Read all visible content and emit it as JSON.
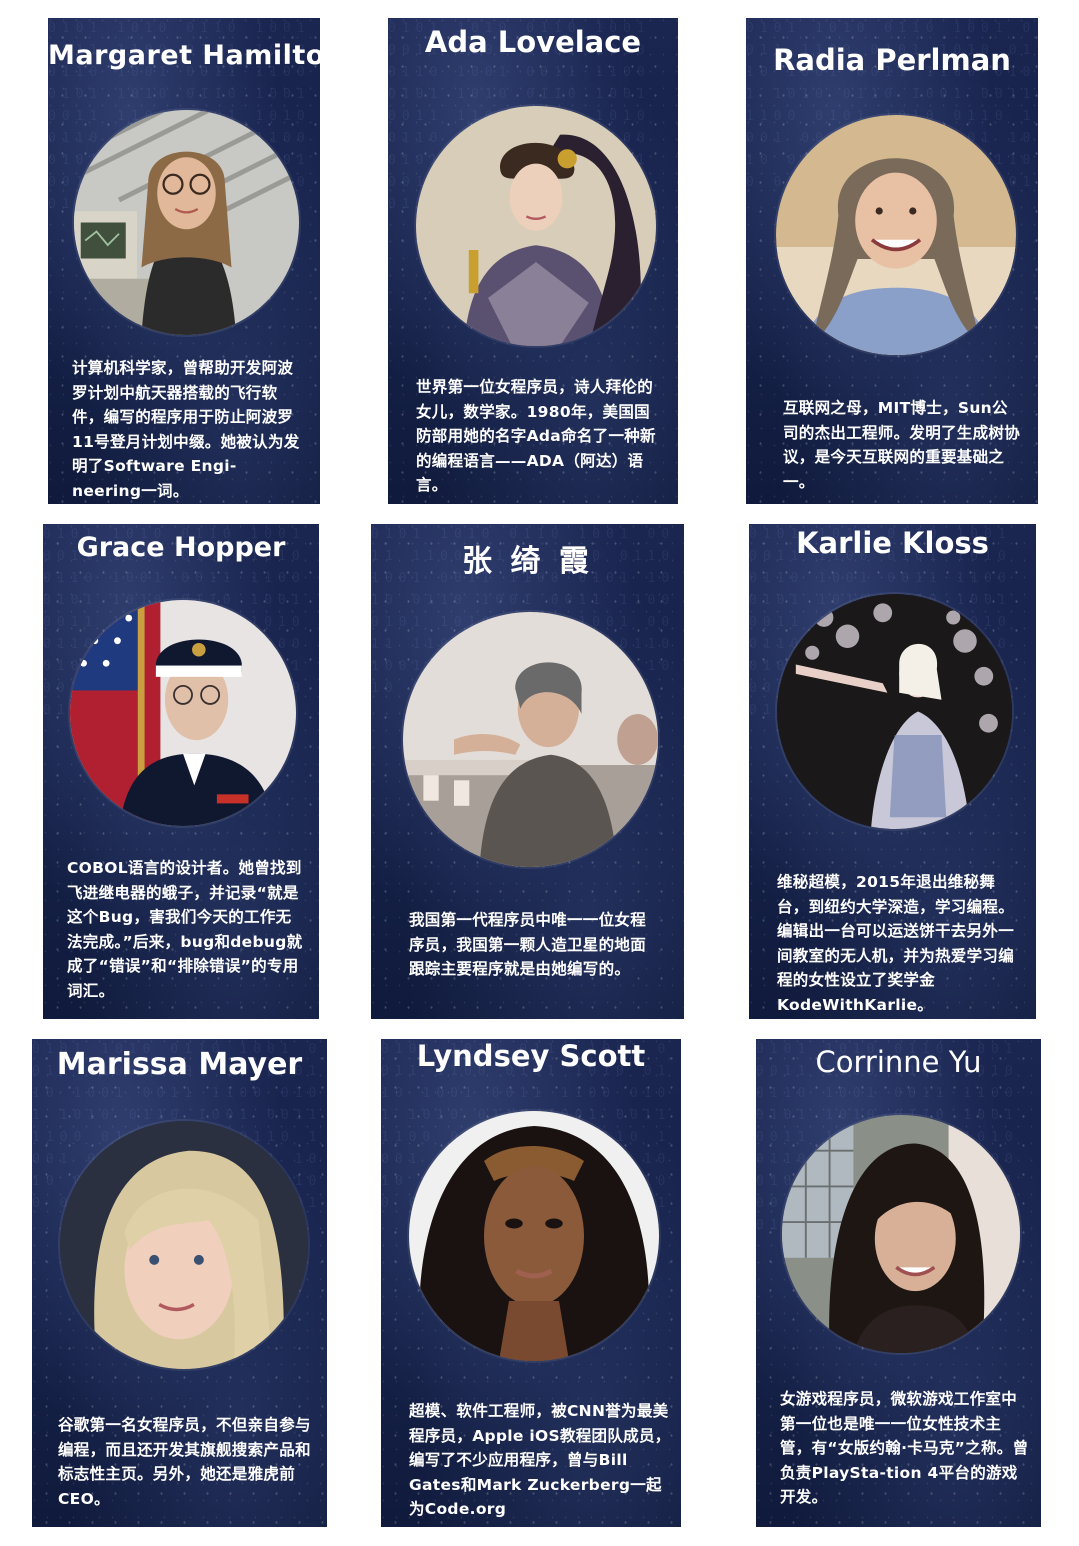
{
  "cards": [
    {
      "name": "Margaret Hamilton",
      "bio": "计算机科学家，曾帮助开发阿波罗计划中航天器搭载的飞行软件，编写的程序用于防止阿波罗11号登月计划中缀。她被认为发明了Software Engi-neering一词。"
    },
    {
      "name": "Ada Lovelace",
      "bio": "世界第一位女程序员，诗人拜伦的女儿，数学家。1980年，美国国防部用她的名字Ada命名了一种新的编程语言——ADA（阿达）语言。"
    },
    {
      "name": "Radia Perlman",
      "bio": "互联网之母，MIT博士，Sun公司的杰出工程师。发明了生成树协议，是今天互联网的重要基础之一。"
    },
    {
      "name": "Grace Hopper",
      "bio": "COBOL语言的设计者。她曾找到飞进继电器的蛾子，并记录“就是这个Bug，害我们今天的工作无法完成。”后来，bug和debug就成了“错误”和“排除错误”的专用词汇。"
    },
    {
      "name": "张 绮 霞",
      "bio": "我国第一代程序员中唯一一位女程序员，我国第一颗人造卫星的地面跟踪主要程序就是由她编写的。"
    },
    {
      "name": "Karlie Kloss",
      "bio": "维秘超模，2015年退出维秘舞台，到纽约大学深造，学习编程。编辑出一台可以运送饼干去另外一间教室的无人机，并为热爱学习编程的女性设立了奖学金KodeWithKarlie。"
    },
    {
      "name": "Marissa Mayer",
      "bio": "谷歌第一名女程序员，不但亲自参与编程，而且还开发其旗舰搜索产品和标志性主页。另外，她还是雅虎前CEO。"
    },
    {
      "name": "Lyndsey Scott",
      "bio": "超模、软件工程师，被CNN誉为最美程序员，Apple iOS教程团队成员，编写了不少应用程序，曾与Bill Gates和Mark Zuckerberg一起为Code.org"
    },
    {
      "name": "Corrinne Yu",
      "bio": "女游戏程序员，微软游戏工作室中第一位也是唯一一位女性技术主管，有“女版约翰·卡马克”之称。曾负责PlaySta-tion 4平台的游戏开发。"
    }
  ]
}
